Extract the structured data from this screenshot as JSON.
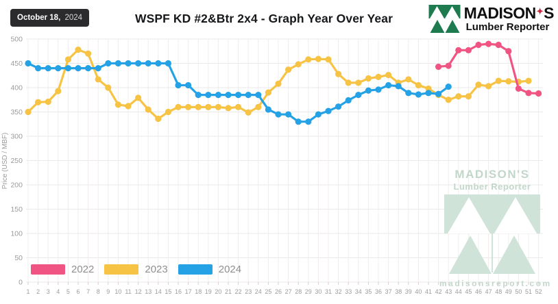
{
  "header": {
    "date_label": "October 18,",
    "date_year": "2024",
    "title": "WSPF KD #2&Btr 2x4 - Graph Year Over Year",
    "logo": {
      "name_prefix": "MADISON",
      "apostrophe": "✦",
      "name_suffix": "S",
      "subtitle": "Lumber Reporter",
      "green": "#1e7b50",
      "star_red": "#c8273d"
    }
  },
  "chart_data": {
    "type": "line",
    "title": "WSPF KD #2&Btr 2x4 - Graph Year Over Year",
    "ylabel": "Price (USD / MBF)",
    "ylim": [
      0,
      500
    ],
    "ytick_step": 50,
    "weeks": 52,
    "xticks": [
      1,
      2,
      3,
      4,
      5,
      6,
      7,
      8,
      9,
      10,
      11,
      12,
      13,
      14,
      15,
      16,
      17,
      18,
      19,
      20,
      21,
      22,
      23,
      24,
      25,
      26,
      27,
      28,
      29,
      30,
      31,
      32,
      33,
      34,
      35,
      36,
      37,
      38,
      39,
      40,
      41,
      42,
      43,
      44,
      45,
      46,
      47,
      48,
      49,
      50,
      51,
      52
    ],
    "grid": true,
    "legend_position": "bottom-left",
    "series": [
      {
        "name": "2022",
        "color": "#f05482",
        "start_week": 42,
        "values": [
          443,
          445,
          477,
          477,
          488,
          490,
          488,
          475,
          398,
          389,
          388
        ]
      },
      {
        "name": "2023",
        "color": "#f6c344",
        "start_week": 1,
        "values": [
          350,
          370,
          371,
          393,
          458,
          478,
          470,
          417,
          400,
          365,
          362,
          379,
          355,
          336,
          350,
          360,
          360,
          360,
          360,
          360,
          358,
          360,
          349,
          360,
          390,
          408,
          437,
          448,
          458,
          459,
          458,
          428,
          410,
          410,
          419,
          422,
          426,
          410,
          417,
          405,
          398,
          385,
          375,
          382,
          382,
          406,
          403,
          414,
          413,
          412,
          414
        ]
      },
      {
        "name": "2024",
        "color": "#25a2e5",
        "start_week": 1,
        "values": [
          450,
          440,
          440,
          440,
          440,
          440,
          440,
          440,
          450,
          450,
          450,
          450,
          450,
          450,
          450,
          405,
          405,
          385,
          385,
          385,
          385,
          385,
          385,
          385,
          355,
          345,
          345,
          330,
          330,
          345,
          352,
          361,
          374,
          385,
          394,
          396,
          405,
          403,
          389,
          386,
          389,
          387,
          402
        ]
      }
    ]
  },
  "watermark": {
    "title": "MADISON'S",
    "subtitle": "Lumber Reporter",
    "url": "madisonsreport.com",
    "color": "#cfe3d8"
  }
}
